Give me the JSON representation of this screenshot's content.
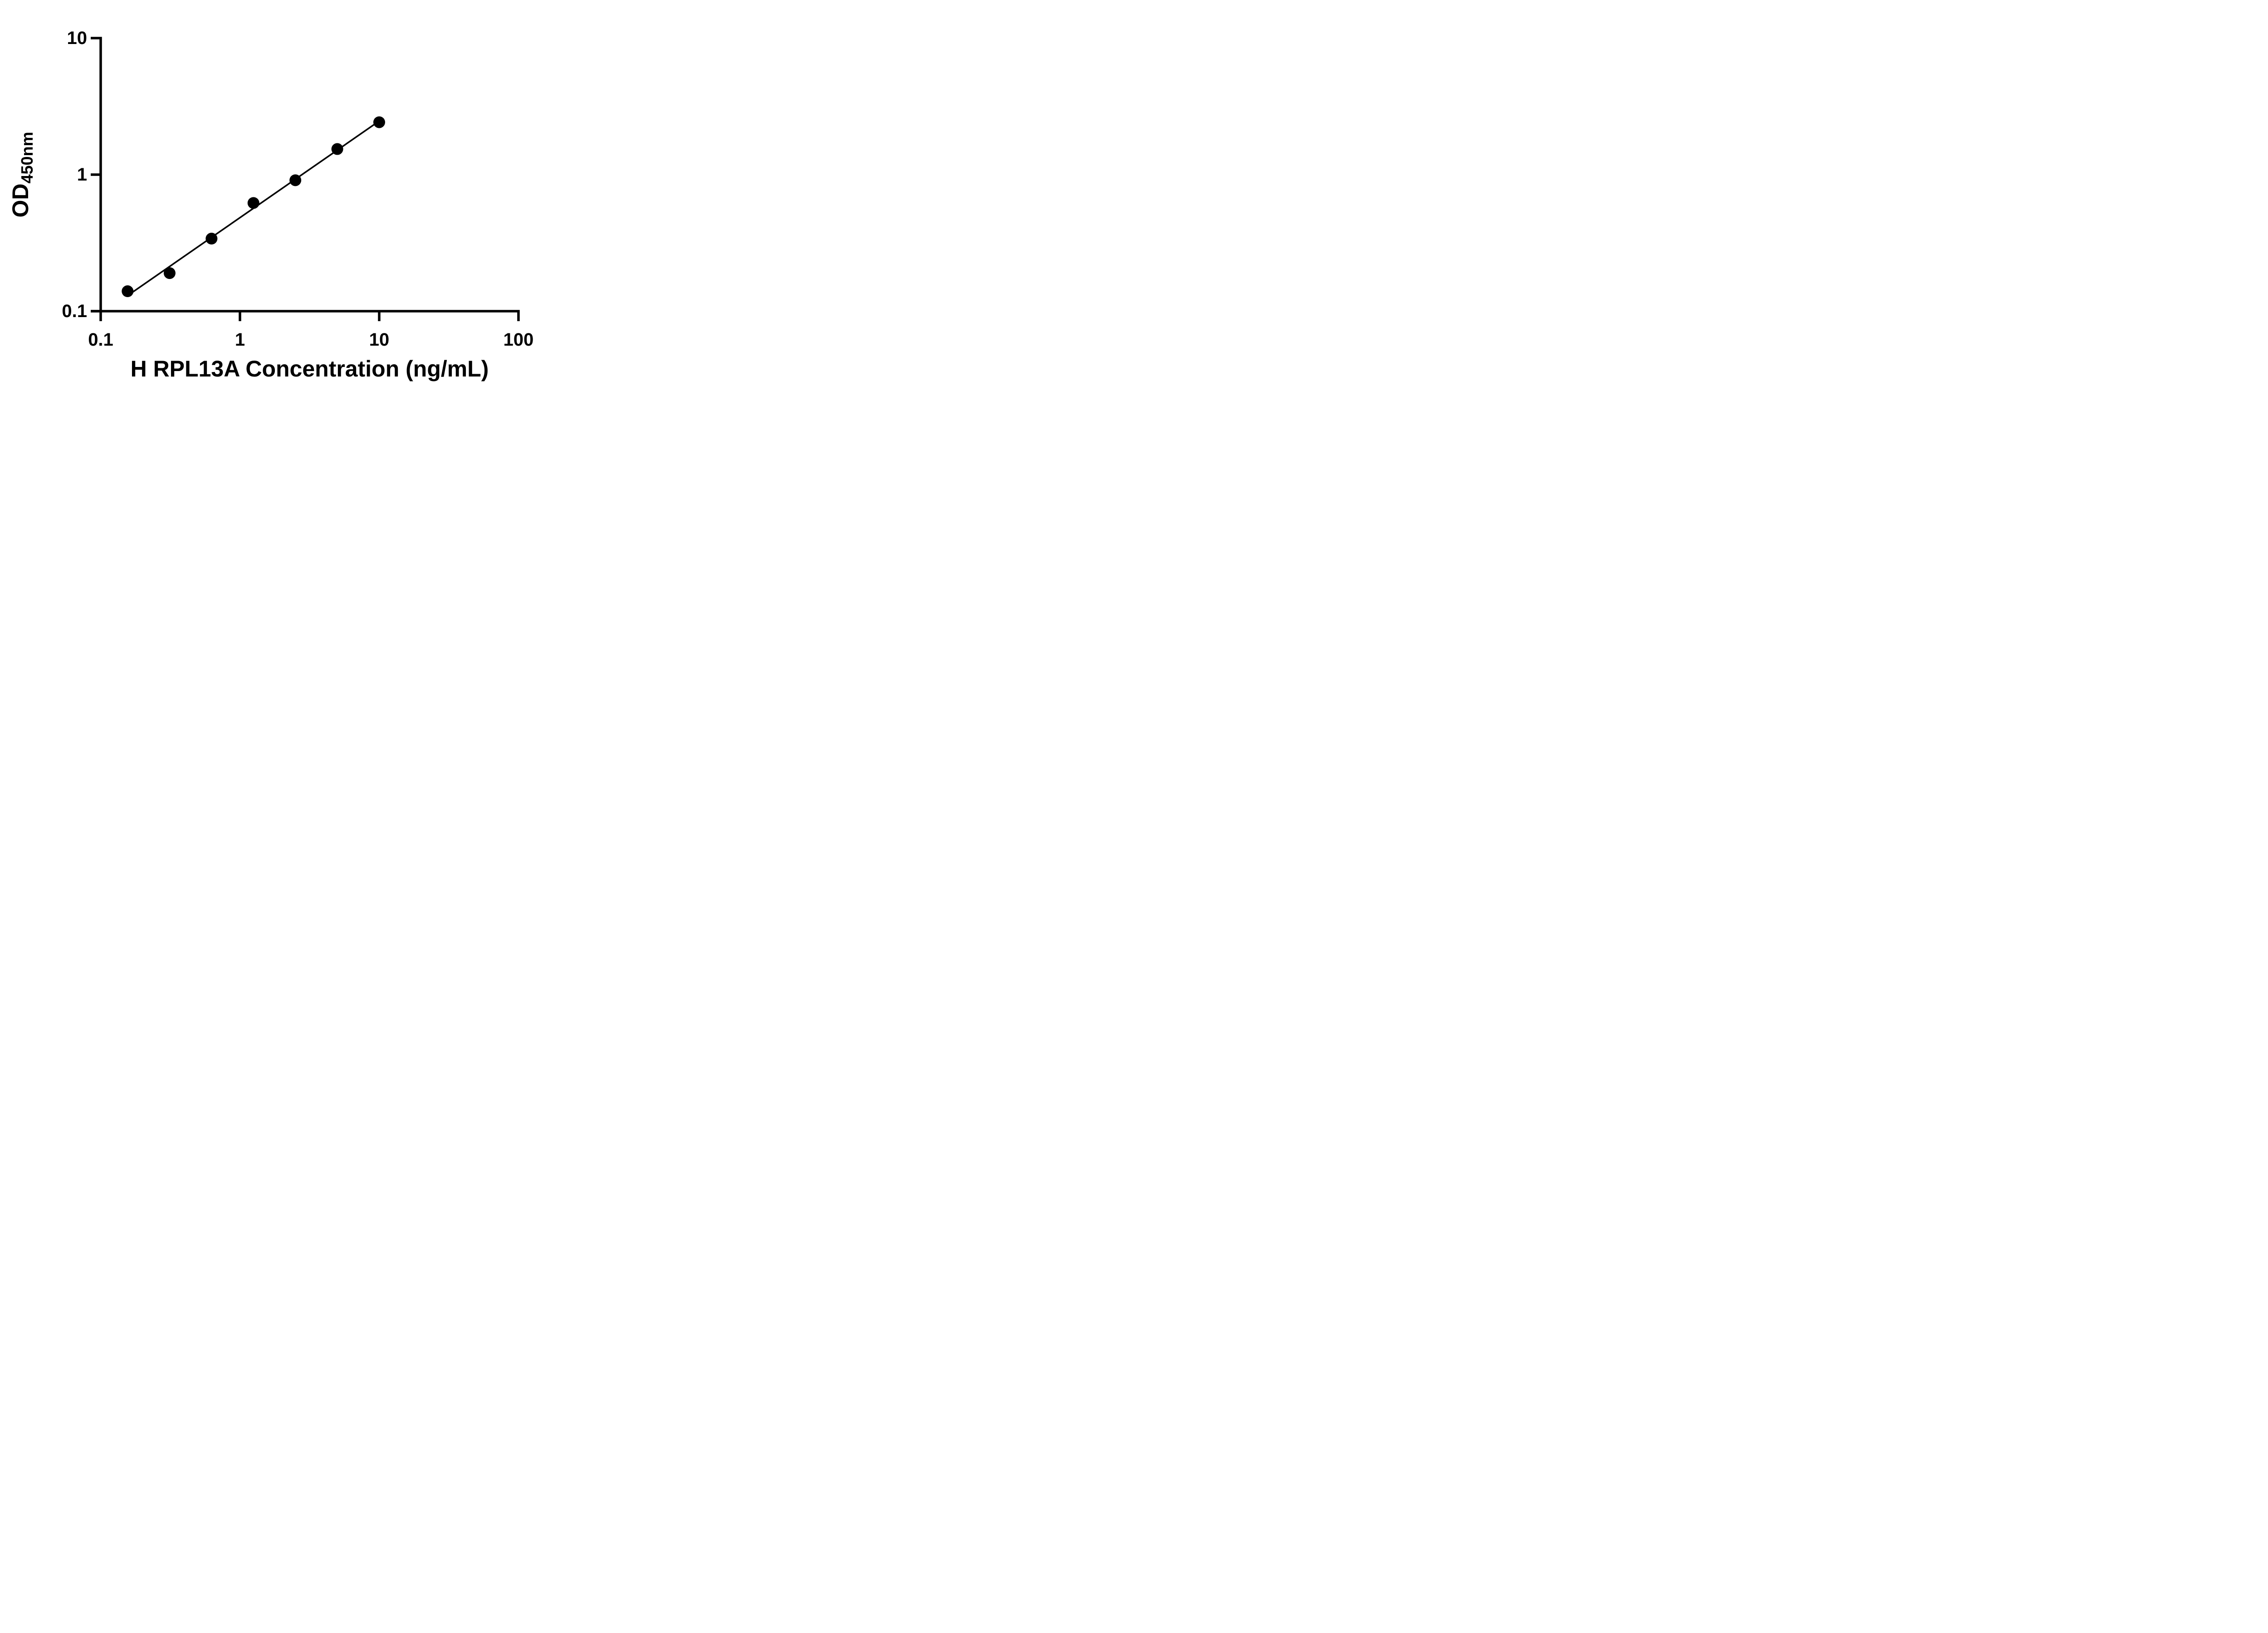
{
  "figure": {
    "background": "#ffffff",
    "ink_color": "#000000"
  },
  "chart_data": {
    "type": "scatter",
    "title": "",
    "xlabel": "H RPL13A Concentration (ng/mL)",
    "ylabel_main": "OD",
    "ylabel_sub": "450nm",
    "x_scale": "log",
    "y_scale": "log",
    "xlim": [
      0.1,
      100
    ],
    "ylim": [
      0.1,
      10
    ],
    "x_ticks": [
      0.1,
      1,
      10,
      100
    ],
    "x_tick_labels": [
      "0.1",
      "1",
      "10",
      "100"
    ],
    "y_ticks": [
      0.1,
      1,
      10
    ],
    "y_tick_labels": [
      "0.1",
      "1",
      "10"
    ],
    "grid": false,
    "legend": false,
    "series": [
      {
        "name": "standard-curve-points",
        "marker": "filled-circle",
        "color": "#000000",
        "x": [
          0.156,
          0.3125,
          0.625,
          1.25,
          2.5,
          5,
          10
        ],
        "y": [
          0.14,
          0.19,
          0.34,
          0.62,
          0.91,
          1.54,
          2.42
        ]
      }
    ],
    "trendline": {
      "type": "linear-fit-loglog",
      "color": "#000000",
      "x1": 0.156,
      "y1": 0.13,
      "x2": 10,
      "y2": 2.47
    }
  }
}
